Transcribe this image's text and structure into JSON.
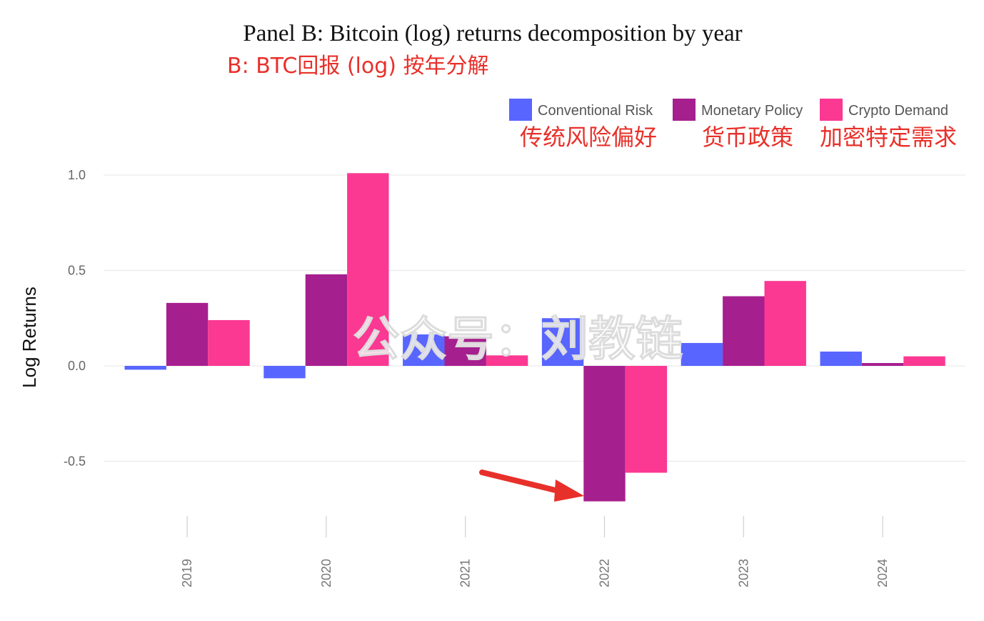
{
  "chart_data": {
    "type": "bar",
    "title": "Panel B: Bitcoin (log) returns decomposition by year",
    "subtitle": "B: BTC回报 (log) 按年分解",
    "xlabel": "",
    "ylabel": "Log Returns",
    "ylim": [
      -0.8,
      1.05
    ],
    "yticks": [
      -0.5,
      0.0,
      0.5,
      1.0
    ],
    "ytick_labels": [
      "-0.5",
      "0.0",
      "0.5",
      "1.0"
    ],
    "grid": true,
    "legend_position": "top-right",
    "categories": [
      "2019",
      "2020",
      "2021",
      "2022",
      "2023",
      "2024"
    ],
    "series": [
      {
        "name": "Conventional Risk",
        "annotation": "传统风险偏好",
        "color": "#5865ff",
        "values": [
          -0.02,
          -0.065,
          0.165,
          0.25,
          0.12,
          0.075
        ]
      },
      {
        "name": "Monetary Policy",
        "annotation": "货币政策",
        "color": "#a61f8e",
        "values": [
          0.33,
          0.48,
          0.155,
          -0.71,
          0.365,
          0.015
        ]
      },
      {
        "name": "Crypto Demand",
        "annotation": "加密特定需求",
        "color": "#fb3892",
        "values": [
          0.24,
          1.01,
          0.055,
          -0.56,
          0.445,
          0.05
        ]
      }
    ]
  },
  "watermark": "公众号：刘教链",
  "arrow_color": "#e8302a"
}
